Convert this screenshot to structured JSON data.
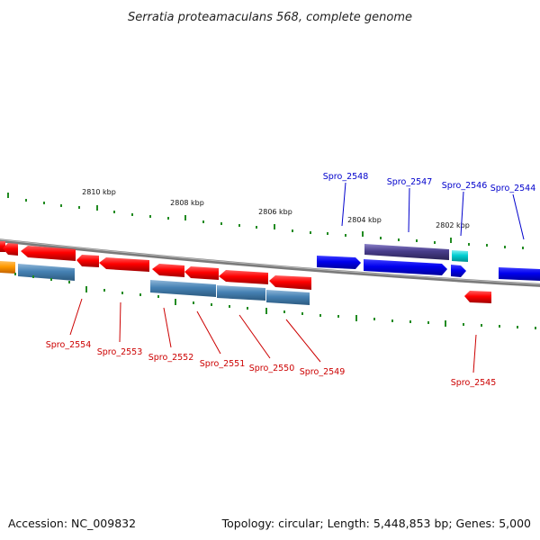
{
  "title": "Serratia proteamaculans 568, complete genome",
  "kbp_labels": [
    "2810 kbp",
    "2808 kbp",
    "2806 kbp",
    "2804 kbp",
    "2802 kbp"
  ],
  "gene_labels_top": [
    "Spro_2548",
    "Spro_2547",
    "Spro_2546",
    "Spro_2544"
  ],
  "gene_labels_bottom": [
    "Spro_2554",
    "Spro_2553",
    "Spro_2552",
    "Spro_2551",
    "Spro_2550",
    "Spro_2549",
    "Spro_2545"
  ],
  "footer": {
    "accession": "Accession: NC_009832",
    "stats": "Topology: circular; Length: 5,448,853 bp; Genes: 5,000"
  },
  "colors": {
    "forward_gene": "#0000ee",
    "reverse_gene": "#ee0000",
    "steelblue_feature": "#4682b4",
    "purple_feature": "#483d8b",
    "cyan_feature": "#00ced1",
    "orange_feature": "#ff8c00",
    "backbone": "#808080",
    "tick": "#228b22"
  }
}
